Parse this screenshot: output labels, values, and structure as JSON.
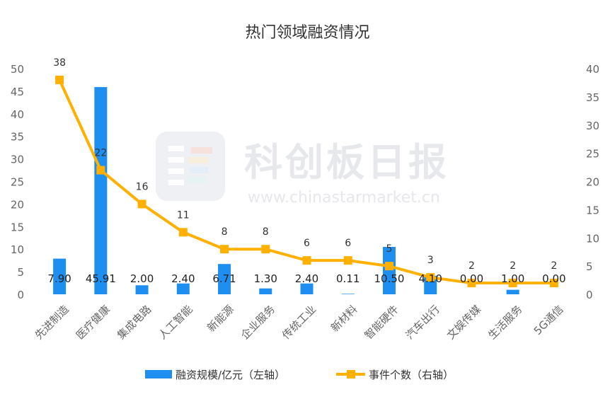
{
  "watermark": {
    "brand": "科创板日报",
    "url": "www.chinastarmarket.cn"
  },
  "chart_data": {
    "type": "bar",
    "title": "热门领域融资情况",
    "categories": [
      "先进制造",
      "医疗健康",
      "集成电路",
      "人工智能",
      "新能源",
      "企业服务",
      "传统工业",
      "新材料",
      "智能硬件",
      "汽车出行",
      "文娱传媒",
      "生活服务",
      "5G通信"
    ],
    "y_left": {
      "range": [
        0,
        50
      ],
      "ticks": [
        0,
        5,
        10,
        15,
        20,
        25,
        30,
        35,
        40,
        45,
        50
      ]
    },
    "y_right": {
      "range": [
        0,
        40
      ],
      "ticks": [
        0,
        5,
        10,
        15,
        20,
        25,
        30,
        35,
        40
      ]
    },
    "series": [
      {
        "name": "融资规模/亿元（左轴）",
        "type": "bar",
        "axis": "left",
        "color": "#1f8ef1",
        "values": [
          7.9,
          45.91,
          2.0,
          2.4,
          6.71,
          1.3,
          2.4,
          0.11,
          10.5,
          4.1,
          0.0,
          1.0,
          0.0
        ],
        "labels": [
          "7.90",
          "45.91",
          "2.00",
          "2.40",
          "6.71",
          "1.30",
          "2.40",
          "0.11",
          "10.50",
          "4.10",
          "0.00",
          "1.00",
          "0.00"
        ]
      },
      {
        "name": "事件个数（右轴）",
        "type": "line",
        "axis": "right",
        "color": "#ffb000",
        "values": [
          38,
          22,
          16,
          11,
          8,
          8,
          6,
          6,
          5,
          3,
          2,
          2,
          2
        ],
        "labels": [
          "38",
          "22",
          "16",
          "11",
          "8",
          "8",
          "6",
          "6",
          "5",
          "3",
          "2",
          "2",
          "2"
        ]
      }
    ],
    "legend": "bottom",
    "grid": false
  }
}
